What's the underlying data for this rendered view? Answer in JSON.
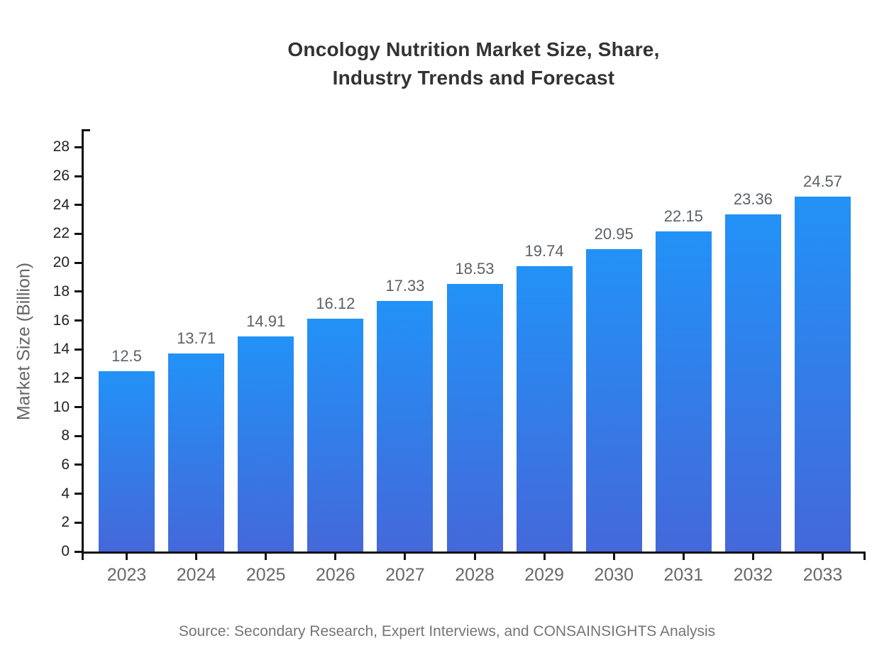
{
  "page": {
    "title": "Oncology Nutrition Market Size, Share,\nIndustry Trends and Forecast",
    "source_note": "Source: Secondary Research, Expert Interviews, and CONSAINSIGHTS Analysis"
  },
  "chart_data": {
    "type": "bar",
    "title": "Oncology Nutrition Market Size, Share, Industry Trends and Forecast",
    "categories": [
      "2023",
      "2024",
      "2025",
      "2026",
      "2027",
      "2028",
      "2029",
      "2030",
      "2031",
      "2032",
      "2033"
    ],
    "values": [
      12.5,
      13.71,
      14.91,
      16.12,
      17.33,
      18.53,
      19.74,
      20.95,
      22.15,
      23.36,
      24.57
    ],
    "xlabel": "",
    "ylabel": "Market Size (Billion)",
    "ylim": [
      0,
      29.25
    ],
    "yticks": [
      0,
      2,
      4,
      6,
      8,
      10,
      12,
      14,
      16,
      18,
      20,
      22,
      24,
      26,
      28
    ],
    "grid": false,
    "legend": "none",
    "source_note": "Source: Secondary Research, Expert Interviews, and CONSAINSIGHTS Analysis",
    "colors": {
      "bar_gradient_top": "#2292f7",
      "bar_gradient_bottom": "#4468da",
      "axis": "#111111",
      "title_text": "#333333",
      "value_label": "#5c6166",
      "category_label": "#66696d",
      "ytick_label": "#222222",
      "axis_label": "#666666",
      "source_text": "#757575"
    }
  }
}
